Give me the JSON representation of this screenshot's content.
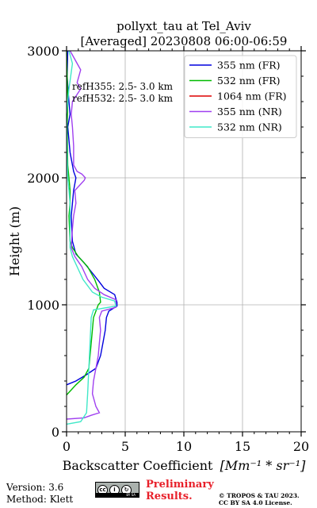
{
  "chart_data": {
    "type": "line",
    "title_line1": "pollyxt_tau at Tel_Aviv",
    "title_line2": "[Averaged] 20230808 06:00-06:59",
    "xlabel": "Backscatter Coefficient",
    "xlabel_units": "[Mm⁻¹ * sr⁻¹]",
    "ylabel": "Height (m)",
    "xlim": [
      0,
      20
    ],
    "ylim": [
      0,
      3000
    ],
    "xticks": [
      0,
      5,
      10,
      15,
      20
    ],
    "yticks": [
      0,
      1000,
      2000,
      3000
    ],
    "grid": true,
    "legend_position": "top-right",
    "annotations": [
      "refH355:  2.5- 3.0 km",
      "refH532:  2.5- 3.0 km"
    ],
    "series": [
      {
        "name": "355 nm (FR)",
        "color": "#0000dd",
        "points": [
          [
            0,
            370
          ],
          [
            0.8,
            400
          ],
          [
            1.7,
            450
          ],
          [
            2.5,
            500
          ],
          [
            2.9,
            600
          ],
          [
            3.1,
            700
          ],
          [
            3.3,
            800
          ],
          [
            3.4,
            900
          ],
          [
            3.6,
            950
          ],
          [
            4.3,
            990
          ],
          [
            4.3,
            1020
          ],
          [
            4.1,
            1080
          ],
          [
            3.2,
            1130
          ],
          [
            2.8,
            1180
          ],
          [
            2.2,
            1250
          ],
          [
            1.5,
            1330
          ],
          [
            0.8,
            1400
          ],
          [
            0.5,
            1500
          ],
          [
            0.4,
            1700
          ],
          [
            0.5,
            1800
          ],
          [
            0.6,
            1900
          ],
          [
            0.8,
            2000
          ],
          [
            0.6,
            2050
          ],
          [
            0.3,
            2200
          ],
          [
            0.1,
            2400
          ],
          [
            0.3,
            2500
          ],
          [
            0.2,
            2600
          ],
          [
            0.05,
            2800
          ],
          [
            0.1,
            3000
          ]
        ]
      },
      {
        "name": "532 nm (FR)",
        "color": "#00bb00",
        "points": [
          [
            0,
            290
          ],
          [
            0.8,
            370
          ],
          [
            1.5,
            430
          ],
          [
            1.9,
            500
          ],
          [
            2.1,
            700
          ],
          [
            2.3,
            900
          ],
          [
            2.7,
            1000
          ],
          [
            2.9,
            1020
          ],
          [
            2.8,
            1100
          ],
          [
            2.4,
            1200
          ],
          [
            1.8,
            1300
          ],
          [
            1.0,
            1380
          ],
          [
            0.5,
            1450
          ],
          [
            0.3,
            1500
          ],
          [
            0.2,
            1700
          ],
          [
            0.3,
            1800
          ],
          [
            0.3,
            1900
          ],
          [
            0.2,
            2000
          ],
          [
            0.1,
            2100
          ],
          [
            0.05,
            2400
          ],
          [
            0.1,
            2600
          ],
          [
            0.05,
            2800
          ],
          [
            0,
            3000
          ]
        ]
      },
      {
        "name": "1064 nm (FR)",
        "color": "#dd0000",
        "points": []
      },
      {
        "name": "355 nm (NR)",
        "color": "#a040f0",
        "points": [
          [
            0,
            100
          ],
          [
            1.5,
            110
          ],
          [
            2.1,
            130
          ],
          [
            2.8,
            150
          ],
          [
            2.5,
            200
          ],
          [
            2.2,
            300
          ],
          [
            2.3,
            400
          ],
          [
            2.5,
            500
          ],
          [
            2.7,
            600
          ],
          [
            2.8,
            700
          ],
          [
            2.9,
            800
          ],
          [
            2.8,
            900
          ],
          [
            3.0,
            950
          ],
          [
            4.2,
            980
          ],
          [
            4.2,
            1040
          ],
          [
            3.2,
            1080
          ],
          [
            2.4,
            1130
          ],
          [
            1.8,
            1200
          ],
          [
            1.3,
            1300
          ],
          [
            0.7,
            1380
          ],
          [
            0.4,
            1450
          ],
          [
            0.5,
            1600
          ],
          [
            0.6,
            1700
          ],
          [
            0.8,
            1800
          ],
          [
            0.7,
            1900
          ],
          [
            1.5,
            1980
          ],
          [
            1.6,
            2000
          ],
          [
            1.3,
            2030
          ],
          [
            0.9,
            2050
          ],
          [
            0.6,
            2100
          ],
          [
            0.6,
            2250
          ],
          [
            0.5,
            2400
          ],
          [
            0.4,
            2500
          ],
          [
            0.5,
            2600
          ],
          [
            1.2,
            2700
          ],
          [
            0.9,
            2750
          ],
          [
            1.2,
            2850
          ],
          [
            0.6,
            2950
          ],
          [
            0.3,
            3000
          ]
        ]
      },
      {
        "name": "532 nm (NR)",
        "color": "#40e8c8",
        "points": [
          [
            0,
            60
          ],
          [
            1.2,
            80
          ],
          [
            1.7,
            150
          ],
          [
            1.8,
            300
          ],
          [
            1.9,
            500
          ],
          [
            2.0,
            700
          ],
          [
            2.1,
            900
          ],
          [
            2.3,
            960
          ],
          [
            4.2,
            990
          ],
          [
            4.1,
            1030
          ],
          [
            3.0,
            1060
          ],
          [
            2.2,
            1100
          ],
          [
            1.4,
            1200
          ],
          [
            0.9,
            1300
          ],
          [
            0.5,
            1380
          ],
          [
            0.3,
            1450
          ],
          [
            0.3,
            1600
          ],
          [
            0.3,
            1800
          ],
          [
            0.2,
            1900
          ],
          [
            0.1,
            2000
          ],
          [
            0.05,
            2200
          ],
          [
            0,
            2500
          ],
          [
            0.2,
            2700
          ],
          [
            0.5,
            2900
          ],
          [
            0.2,
            3000
          ]
        ]
      }
    ]
  },
  "footer": {
    "version": "Version: 3.6",
    "method": "Method: Klett",
    "preliminary_line1": "Preliminary",
    "preliminary_line2": "Results.",
    "copyright_line1": "© TROPOS & TAU 2023.",
    "copyright_line2": "CC BY SA 4.0 License.",
    "license_icon": "cc-by-sa-icon",
    "license_glyphs": [
      "cc",
      "i",
      "↻"
    ],
    "license_strip": "BY   SA"
  }
}
